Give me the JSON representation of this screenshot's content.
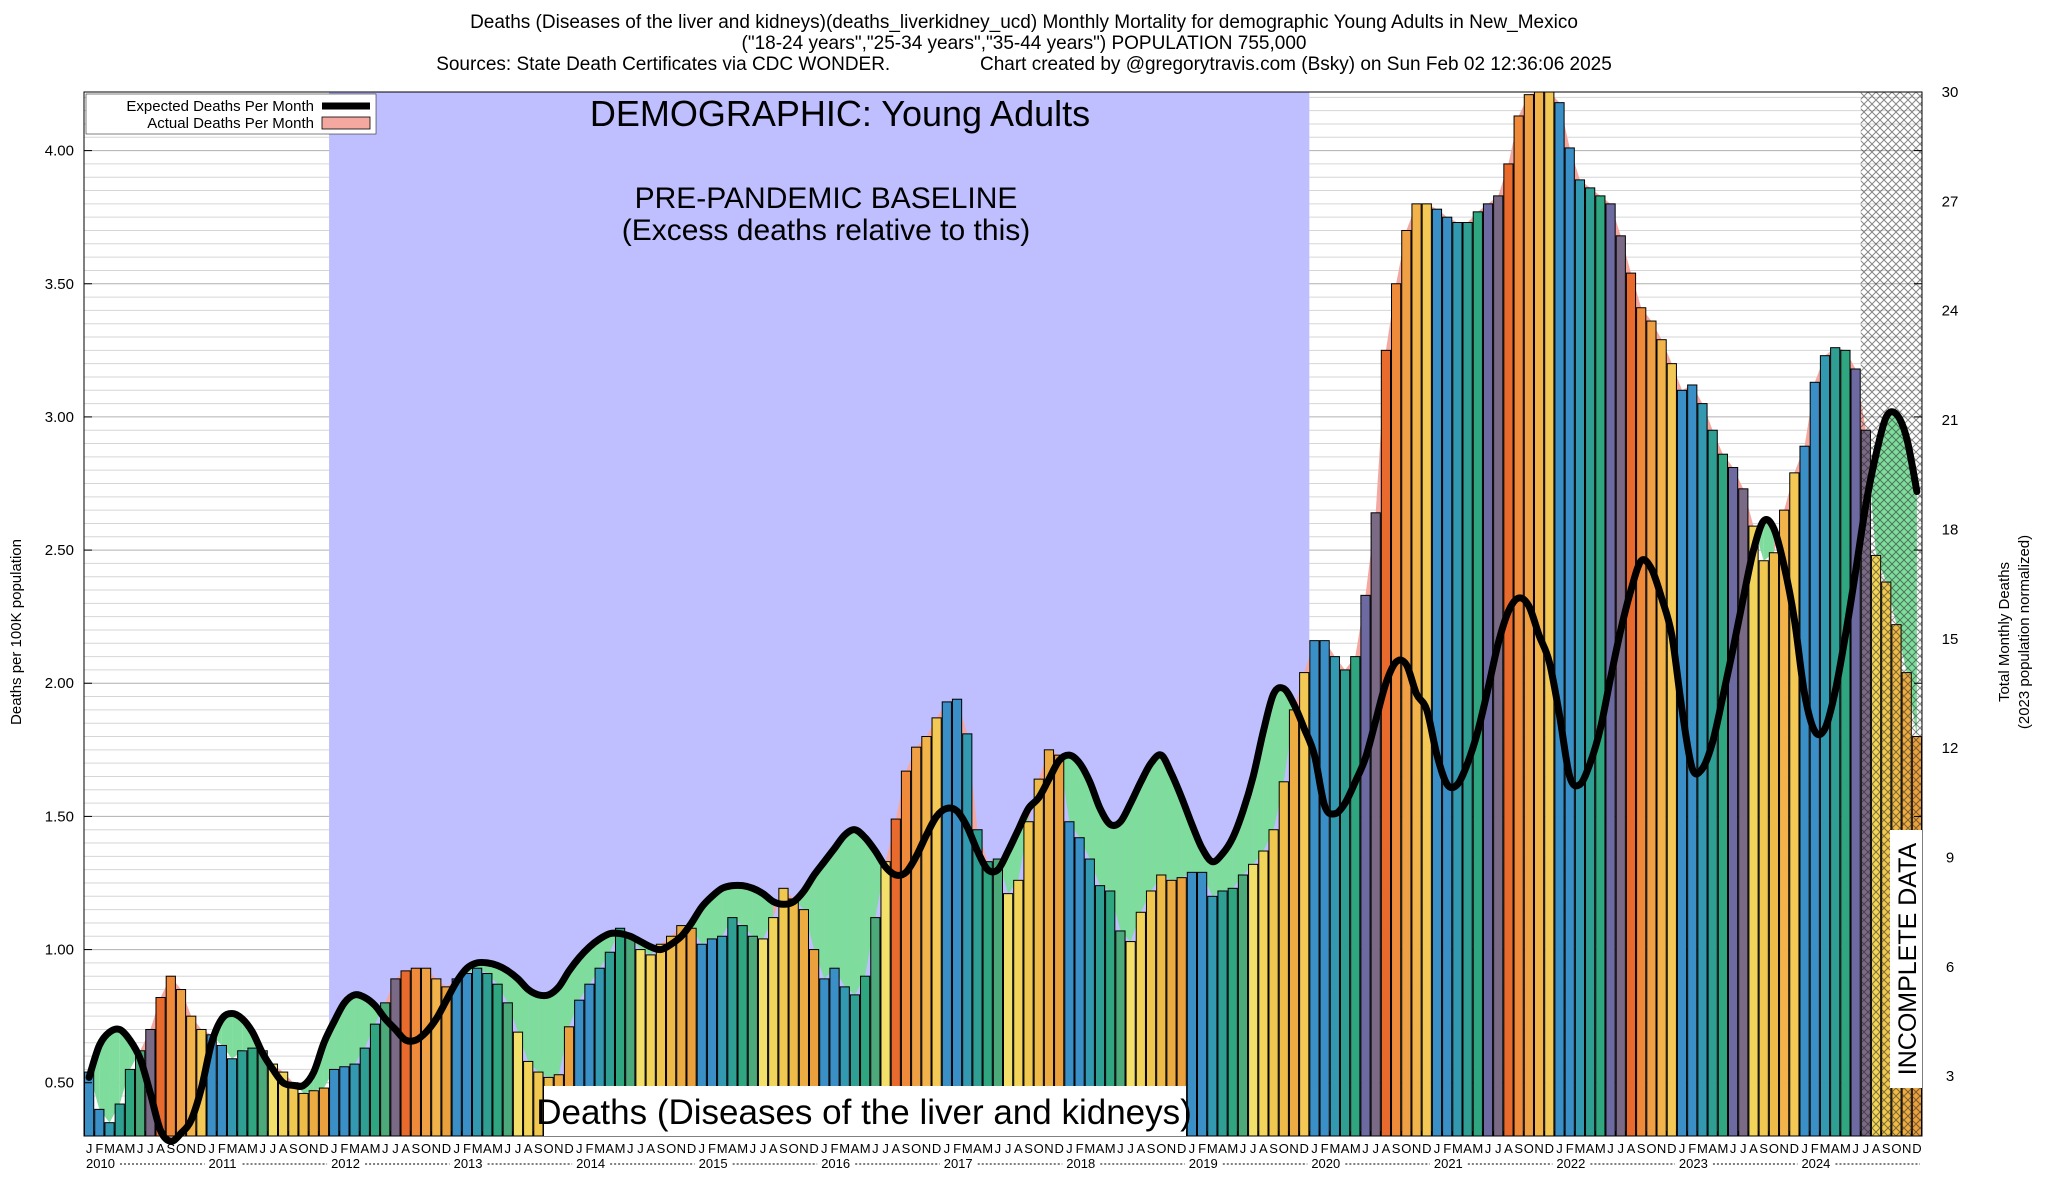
{
  "header": {
    "line1": "Deaths (Diseases of the liver and kidneys)(deaths_liverkidney_ucd) Monthly Mortality for demographic Young Adults in New_Mexico",
    "line2": "(\"18-24 years\",\"25-34 years\",\"35-44 years\") POPULATION 755,000",
    "line3_left": "Sources: State Death Certificates via CDC WONDER.",
    "line3_right": "Chart created by @gregorytravis.com (Bsky) on Sun Feb 02 12:36:06 2025"
  },
  "chart_data": {
    "type": "bar",
    "title": "DEMOGRAPHIC: Young Adults",
    "baseline_label": "PRE-PANDEMIC BASELINE",
    "baseline_sublabel": "(Excess deaths relative to this)",
    "bottom_label": "Deaths (Diseases of the liver and kidneys)",
    "incomplete_label": "INCOMPLETE DATA",
    "ylabel": "Deaths per 100K population",
    "y2label_line1": "Total Monthly Deaths",
    "y2label_line2": "(2023 population normalized)",
    "ylim": [
      0.3,
      4.22
    ],
    "y2lim": [
      1.36,
      30
    ],
    "yticks": [
      "0.50",
      "1.00",
      "1.50",
      "2.00",
      "2.50",
      "3.00",
      "3.50",
      "4.00"
    ],
    "y2ticks": [
      "3",
      "6",
      "9",
      "12",
      "15",
      "18",
      "21",
      "24",
      "27",
      "30"
    ],
    "legend": [
      {
        "name": "Expected Deaths Per Month",
        "color": "#000000"
      },
      {
        "name": "Actual Deaths Per Month",
        "color": "#f4a8a0"
      }
    ],
    "legend_position": "top-left",
    "baseline_period": [
      "2012-01",
      "2019-12"
    ],
    "incomplete_period": [
      "2024-07",
      "2024-12"
    ],
    "month_letters": [
      "J",
      "F",
      "M",
      "A",
      "M",
      "J",
      "J",
      "A",
      "S",
      "O",
      "N",
      "D"
    ],
    "years": [
      "2010",
      "2011",
      "2012",
      "2013",
      "2014",
      "2015",
      "2016",
      "2017",
      "2018",
      "2019",
      "2020",
      "2021",
      "2022",
      "2023",
      "2024"
    ],
    "start": "2010-01",
    "actual": [
      0.54,
      0.4,
      0.35,
      0.42,
      0.55,
      0.62,
      0.7,
      0.82,
      0.9,
      0.85,
      0.75,
      0.7,
      0.68,
      0.64,
      0.59,
      0.62,
      0.63,
      0.62,
      0.57,
      0.54,
      0.5,
      0.46,
      0.47,
      0.48,
      0.55,
      0.56,
      0.57,
      0.63,
      0.72,
      0.8,
      0.89,
      0.92,
      0.93,
      0.93,
      0.89,
      0.86,
      0.89,
      0.91,
      0.93,
      0.91,
      0.87,
      0.8,
      0.69,
      0.58,
      0.54,
      0.52,
      0.53,
      0.71,
      0.81,
      0.87,
      0.93,
      0.99,
      1.08,
      1.05,
      1.0,
      0.98,
      1.02,
      1.05,
      1.09,
      1.08,
      1.02,
      1.04,
      1.05,
      1.12,
      1.09,
      1.05,
      1.04,
      1.12,
      1.23,
      1.19,
      1.15,
      1.0,
      0.89,
      0.93,
      0.86,
      0.83,
      0.9,
      1.12,
      1.33,
      1.49,
      1.67,
      1.76,
      1.8,
      1.87,
      1.93,
      1.94,
      1.81,
      1.45,
      1.33,
      1.34,
      1.21,
      1.26,
      1.48,
      1.64,
      1.75,
      1.73,
      1.48,
      1.42,
      1.34,
      1.24,
      1.22,
      1.07,
      1.03,
      1.14,
      1.22,
      1.28,
      1.26,
      1.27,
      1.29,
      1.29,
      1.2,
      1.22,
      1.23,
      1.28,
      1.32,
      1.37,
      1.45,
      1.63,
      1.9,
      2.04,
      2.16,
      2.16,
      2.1,
      2.05,
      2.1,
      2.33,
      2.64,
      3.25,
      3.5,
      3.7,
      3.8,
      3.8,
      3.78,
      3.75,
      3.73,
      3.73,
      3.77,
      3.8,
      3.83,
      3.95,
      4.13,
      4.21,
      4.22,
      4.22,
      4.18,
      4.01,
      3.89,
      3.86,
      3.83,
      3.8,
      3.68,
      3.54,
      3.41,
      3.36,
      3.29,
      3.2,
      3.1,
      3.12,
      3.05,
      2.95,
      2.86,
      2.81,
      2.73,
      2.59,
      2.46,
      2.49,
      2.65,
      2.79,
      2.89,
      3.13,
      3.23,
      3.26,
      3.25,
      3.18,
      2.95,
      2.48,
      2.38,
      2.22,
      2.04,
      1.8
    ],
    "expected": [
      0.52,
      0.64,
      0.69,
      0.7,
      0.66,
      0.59,
      0.46,
      0.32,
      0.28,
      0.31,
      0.36,
      0.48,
      0.65,
      0.74,
      0.76,
      0.74,
      0.69,
      0.61,
      0.55,
      0.5,
      0.49,
      0.49,
      0.54,
      0.65,
      0.73,
      0.8,
      0.83,
      0.82,
      0.79,
      0.74,
      0.7,
      0.66,
      0.66,
      0.69,
      0.74,
      0.81,
      0.88,
      0.93,
      0.95,
      0.95,
      0.94,
      0.92,
      0.89,
      0.85,
      0.83,
      0.83,
      0.86,
      0.92,
      0.97,
      1.01,
      1.04,
      1.06,
      1.06,
      1.05,
      1.03,
      1.01,
      1.0,
      1.02,
      1.05,
      1.1,
      1.16,
      1.2,
      1.23,
      1.24,
      1.24,
      1.23,
      1.21,
      1.18,
      1.17,
      1.18,
      1.22,
      1.28,
      1.33,
      1.38,
      1.43,
      1.45,
      1.42,
      1.37,
      1.31,
      1.28,
      1.29,
      1.35,
      1.43,
      1.5,
      1.53,
      1.52,
      1.46,
      1.37,
      1.3,
      1.3,
      1.37,
      1.45,
      1.53,
      1.57,
      1.64,
      1.71,
      1.73,
      1.7,
      1.63,
      1.53,
      1.47,
      1.48,
      1.55,
      1.63,
      1.7,
      1.73,
      1.66,
      1.57,
      1.47,
      1.38,
      1.33,
      1.36,
      1.42,
      1.52,
      1.65,
      1.82,
      1.96,
      1.98,
      1.92,
      1.83,
      1.73,
      1.54,
      1.51,
      1.55,
      1.63,
      1.72,
      1.86,
      2.0,
      2.08,
      2.07,
      1.96,
      1.9,
      1.73,
      1.62,
      1.62,
      1.7,
      1.82,
      1.98,
      2.15,
      2.27,
      2.32,
      2.29,
      2.18,
      2.08,
      1.88,
      1.65,
      1.62,
      1.7,
      1.83,
      2.02,
      2.2,
      2.35,
      2.46,
      2.43,
      2.32,
      2.18,
      1.9,
      1.68,
      1.68,
      1.78,
      1.95,
      2.13,
      2.32,
      2.5,
      2.61,
      2.58,
      2.44,
      2.24,
      1.96,
      1.82,
      1.83,
      1.97,
      2.18,
      2.42,
      2.67,
      2.86,
      3.0,
      3.01,
      2.92,
      2.72
    ]
  }
}
